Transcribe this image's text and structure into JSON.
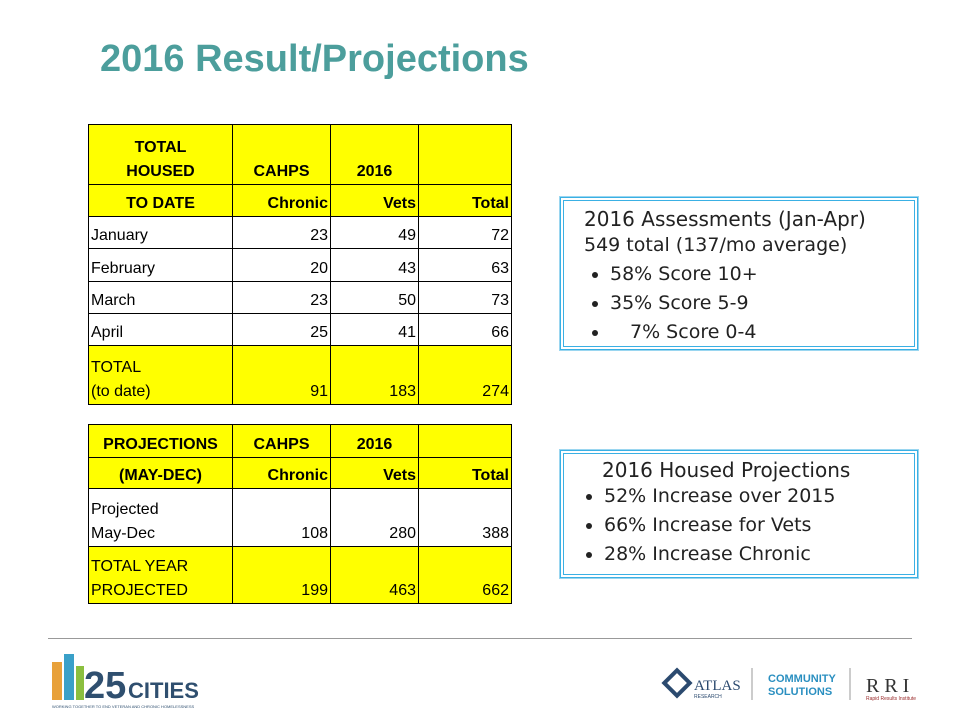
{
  "title": "2016 Result/Projections",
  "table1": {
    "header1": [
      "TOTAL\nHOUSED",
      "CAHPS",
      "2016"
    ],
    "header2": [
      "TO DATE",
      "Chronic",
      "Vets",
      "Total"
    ],
    "rows": [
      [
        "January",
        23,
        49,
        72
      ],
      [
        "February",
        20,
        43,
        63
      ],
      [
        "March",
        23,
        50,
        73
      ],
      [
        "April",
        25,
        41,
        66
      ]
    ],
    "total": [
      "TOTAL\n(to date)",
      91,
      183,
      274
    ]
  },
  "table2": {
    "header1": [
      "PROJECTIONS",
      "CAHPS",
      "2016"
    ],
    "header2": [
      "(MAY-DEC)",
      "Chronic",
      "Vets",
      "Total"
    ],
    "rows": [
      [
        "Projected\nMay-Dec",
        108,
        280,
        388
      ]
    ],
    "total": [
      "TOTAL YEAR\nPROJECTED",
      199,
      463,
      662
    ]
  },
  "box1": {
    "heading": "2016 Assessments (Jan-Apr)",
    "line": "549 total (137/mo average)",
    "bullets": [
      "58%  Score 10+",
      "35%  Score 5-9",
      "7%  Score 0-4"
    ]
  },
  "box2": {
    "heading": "2016 Housed Projections",
    "bullets": [
      "52% Increase over 2015",
      "66% Increase for Vets",
      "28% Increase Chronic"
    ]
  },
  "footer": {
    "logo1": "25",
    "logo1_word": "CITIES",
    "logo1_tag": "WORKING TOGETHER TO END VETERAN AND CHRONIC HOMELESSNESS",
    "logo2": "ATLAS",
    "logo2_sub": "RESEARCH",
    "logo3": "COMMUNITY\nSOLUTIONS",
    "logo4": "R R I",
    "logo4_sub": "Rapid Results Institute"
  }
}
